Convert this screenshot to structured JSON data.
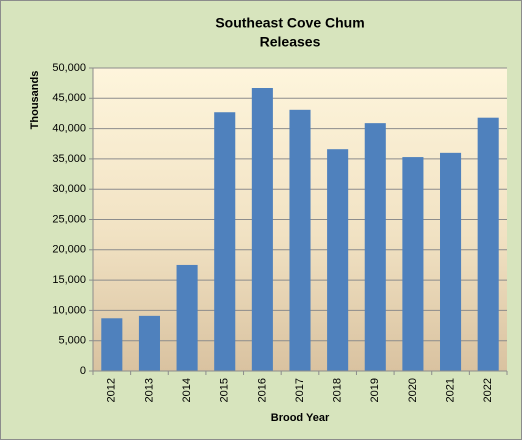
{
  "chart_data": {
    "type": "bar",
    "title": [
      "Southeast Cove Chum",
      "Releases"
    ],
    "x_label": "Brood Year",
    "y_label": "Thousands",
    "categories": [
      "2012",
      "2013",
      "2014",
      "2015",
      "2016",
      "2017",
      "2018",
      "2019",
      "2020",
      "2021",
      "2022"
    ],
    "values": [
      8700,
      9100,
      17500,
      42700,
      46700,
      43100,
      36600,
      40900,
      35300,
      36000,
      41800
    ],
    "color": "#4f81bd",
    "ylim": [
      0,
      50000
    ],
    "yticks": [
      0,
      {
        "value": 5000,
        "label": "5,000"
      },
      {
        "value": 10000,
        "label": "10,000"
      },
      {
        "value": 15000,
        "label": "15,000"
      },
      {
        "value": 20000,
        "label": "20,000"
      },
      {
        "value": 25000,
        "label": "25,000"
      },
      {
        "value": 30000,
        "label": "30,000"
      },
      {
        "value": 35000,
        "label": "35,000"
      },
      {
        "value": 40000,
        "label": "40,000"
      },
      {
        "value": 45000,
        "label": "45,000"
      },
      {
        "value": 50000,
        "label": "50,000"
      }
    ],
    "grid": true
  }
}
